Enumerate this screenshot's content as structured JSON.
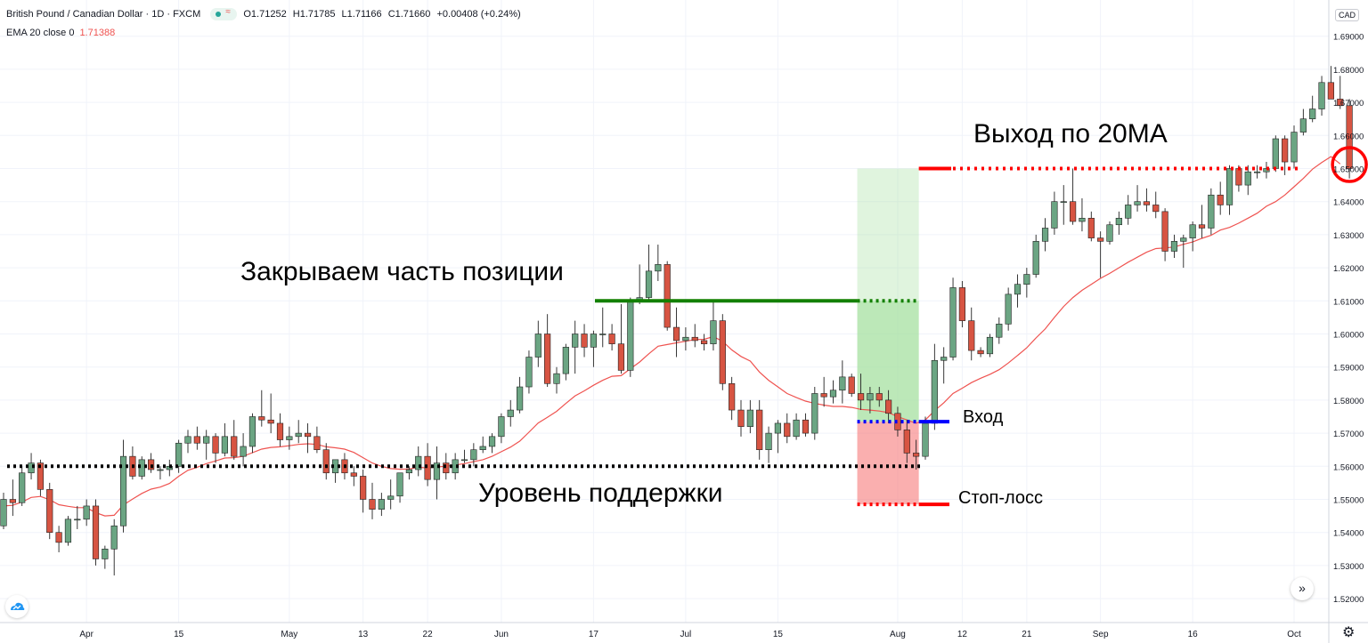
{
  "header": {
    "symbol": "British Pound / Canadian Dollar · 1D · FXCM",
    "open": "O1.71252",
    "high": "H1.71785",
    "low": "L1.71166",
    "close": "C1.71660",
    "change": "+0.00408 (+0.24%)",
    "ema_label": "EMA 20 close 0",
    "ema_value": "1.71388",
    "currency": "CAD"
  },
  "colors": {
    "up": "#6ba583",
    "down": "#d75442",
    "ema": "#ef5350",
    "support": "#000000",
    "take_profit": "#138000",
    "entry": "#0000ff",
    "stop": "#ff0000",
    "profit_zone": "#a5e0a0",
    "loss_zone": "#f77a7a"
  },
  "chart_data": {
    "type": "candlestick",
    "title": "British Pound / Canadian Dollar · 1D · FXCM",
    "ylim": [
      1.515,
      1.695
    ],
    "y_ticks": [
      "1.52000",
      "1.53000",
      "1.54000",
      "1.55000",
      "1.56000",
      "1.57000",
      "1.58000",
      "1.59000",
      "1.60000",
      "1.61000",
      "1.62000",
      "1.63000",
      "1.64000",
      "1.65000",
      "1.66000",
      "1.67000",
      "1.68000",
      "1.69000"
    ],
    "x_ticks": [
      {
        "label": "Apr",
        "bar": 9
      },
      {
        "label": "15",
        "bar": 19
      },
      {
        "label": "May",
        "bar": 31
      },
      {
        "label": "13",
        "bar": 39
      },
      {
        "label": "22",
        "bar": 46
      },
      {
        "label": "Jun",
        "bar": 54
      },
      {
        "label": "17",
        "bar": 64
      },
      {
        "label": "Jul",
        "bar": 74
      },
      {
        "label": "15",
        "bar": 84
      },
      {
        "label": "Aug",
        "bar": 97
      },
      {
        "label": "12",
        "bar": 104
      },
      {
        "label": "21",
        "bar": 111
      },
      {
        "label": "Sep",
        "bar": 119
      },
      {
        "label": "16",
        "bar": 129
      },
      {
        "label": "Oct",
        "bar": 140
      }
    ],
    "candles": [
      [
        1.542,
        1.552,
        1.541,
        1.55
      ],
      [
        1.55,
        1.556,
        1.545,
        1.549
      ],
      [
        1.549,
        1.56,
        1.548,
        1.558
      ],
      [
        1.558,
        1.564,
        1.556,
        1.561
      ],
      [
        1.561,
        1.562,
        1.551,
        1.553
      ],
      [
        1.553,
        1.555,
        1.538,
        1.54
      ],
      [
        1.54,
        1.542,
        1.534,
        1.537
      ],
      [
        1.537,
        1.545,
        1.536,
        1.544
      ],
      [
        1.544,
        1.548,
        1.541,
        1.544
      ],
      [
        1.544,
        1.55,
        1.542,
        1.548
      ],
      [
        1.548,
        1.55,
        1.53,
        1.532
      ],
      [
        1.532,
        1.536,
        1.529,
        1.535
      ],
      [
        1.535,
        1.544,
        1.527,
        1.542
      ],
      [
        1.542,
        1.568,
        1.54,
        1.563
      ],
      [
        1.563,
        1.566,
        1.556,
        1.557
      ],
      [
        1.557,
        1.563,
        1.556,
        1.562
      ],
      [
        1.562,
        1.564,
        1.558,
        1.559
      ],
      [
        1.559,
        1.56,
        1.556,
        1.559
      ],
      [
        1.559,
        1.562,
        1.557,
        1.56
      ],
      [
        1.56,
        1.568,
        1.558,
        1.567
      ],
      [
        1.567,
        1.571,
        1.564,
        1.569
      ],
      [
        1.569,
        1.572,
        1.565,
        1.567
      ],
      [
        1.567,
        1.571,
        1.562,
        1.569
      ],
      [
        1.569,
        1.57,
        1.561,
        1.564
      ],
      [
        1.564,
        1.573,
        1.563,
        1.569
      ],
      [
        1.569,
        1.574,
        1.562,
        1.563
      ],
      [
        1.563,
        1.57,
        1.56,
        1.566
      ],
      [
        1.566,
        1.576,
        1.564,
        1.575
      ],
      [
        1.575,
        1.583,
        1.572,
        1.574
      ],
      [
        1.574,
        1.582,
        1.57,
        1.573
      ],
      [
        1.573,
        1.576,
        1.566,
        1.568
      ],
      [
        1.568,
        1.572,
        1.565,
        1.569
      ],
      [
        1.569,
        1.574,
        1.567,
        1.57
      ],
      [
        1.57,
        1.573,
        1.564,
        1.569
      ],
      [
        1.569,
        1.572,
        1.564,
        1.565
      ],
      [
        1.565,
        1.567,
        1.556,
        1.558
      ],
      [
        1.558,
        1.562,
        1.555,
        1.562
      ],
      [
        1.562,
        1.564,
        1.556,
        1.558
      ],
      [
        1.558,
        1.56,
        1.554,
        1.557
      ],
      [
        1.557,
        1.559,
        1.546,
        1.55
      ],
      [
        1.55,
        1.555,
        1.544,
        1.547
      ],
      [
        1.547,
        1.552,
        1.545,
        1.55
      ],
      [
        1.55,
        1.556,
        1.547,
        1.551
      ],
      [
        1.551,
        1.558,
        1.549,
        1.558
      ],
      [
        1.558,
        1.56,
        1.556,
        1.559
      ],
      [
        1.559,
        1.566,
        1.557,
        1.563
      ],
      [
        1.563,
        1.567,
        1.554,
        1.556
      ],
      [
        1.556,
        1.566,
        1.55,
        1.561
      ],
      [
        1.561,
        1.564,
        1.556,
        1.558
      ],
      [
        1.558,
        1.564,
        1.556,
        1.562
      ],
      [
        1.562,
        1.565,
        1.561,
        1.562
      ],
      [
        1.562,
        1.567,
        1.56,
        1.565
      ],
      [
        1.565,
        1.569,
        1.564,
        1.566
      ],
      [
        1.566,
        1.57,
        1.564,
        1.569
      ],
      [
        1.569,
        1.576,
        1.567,
        1.575
      ],
      [
        1.575,
        1.58,
        1.572,
        1.577
      ],
      [
        1.577,
        1.587,
        1.576,
        1.584
      ],
      [
        1.584,
        1.595,
        1.582,
        1.593
      ],
      [
        1.593,
        1.604,
        1.59,
        1.6
      ],
      [
        1.6,
        1.606,
        1.584,
        1.585
      ],
      [
        1.585,
        1.59,
        1.582,
        1.588
      ],
      [
        1.588,
        1.597,
        1.586,
        1.596
      ],
      [
        1.596,
        1.604,
        1.588,
        1.6
      ],
      [
        1.6,
        1.603,
        1.593,
        1.596
      ],
      [
        1.596,
        1.601,
        1.59,
        1.6
      ],
      [
        1.6,
        1.608,
        1.596,
        1.6
      ],
      [
        1.6,
        1.603,
        1.595,
        1.597
      ],
      [
        1.597,
        1.609,
        1.588,
        1.589
      ],
      [
        1.589,
        1.611,
        1.587,
        1.61
      ],
      [
        1.61,
        1.621,
        1.609,
        1.611
      ],
      [
        1.611,
        1.627,
        1.61,
        1.619
      ],
      [
        1.619,
        1.627,
        1.616,
        1.621
      ],
      [
        1.621,
        1.622,
        1.601,
        1.602
      ],
      [
        1.602,
        1.608,
        1.593,
        1.598
      ],
      [
        1.598,
        1.602,
        1.595,
        1.599
      ],
      [
        1.599,
        1.603,
        1.596,
        1.598
      ],
      [
        1.598,
        1.6,
        1.595,
        1.597
      ],
      [
        1.597,
        1.61,
        1.595,
        1.604
      ],
      [
        1.604,
        1.606,
        1.583,
        1.585
      ],
      [
        1.585,
        1.587,
        1.574,
        1.577
      ],
      [
        1.577,
        1.58,
        1.569,
        1.572
      ],
      [
        1.572,
        1.58,
        1.57,
        1.577
      ],
      [
        1.577,
        1.58,
        1.562,
        1.565
      ],
      [
        1.565,
        1.572,
        1.561,
        1.57
      ],
      [
        1.57,
        1.574,
        1.564,
        1.573
      ],
      [
        1.573,
        1.576,
        1.567,
        1.569
      ],
      [
        1.569,
        1.576,
        1.568,
        1.574
      ],
      [
        1.574,
        1.576,
        1.569,
        1.57
      ],
      [
        1.57,
        1.584,
        1.568,
        1.582
      ],
      [
        1.582,
        1.587,
        1.578,
        1.581
      ],
      [
        1.581,
        1.586,
        1.579,
        1.583
      ],
      [
        1.583,
        1.592,
        1.579,
        1.587
      ],
      [
        1.587,
        1.588,
        1.581,
        1.582
      ],
      [
        1.582,
        1.588,
        1.577,
        1.58
      ],
      [
        1.58,
        1.584,
        1.576,
        1.582
      ],
      [
        1.582,
        1.584,
        1.578,
        1.58
      ],
      [
        1.58,
        1.583,
        1.573,
        1.576
      ],
      [
        1.576,
        1.578,
        1.569,
        1.571
      ],
      [
        1.571,
        1.574,
        1.561,
        1.564
      ],
      [
        1.564,
        1.568,
        1.559,
        1.563
      ],
      [
        1.563,
        1.575,
        1.562,
        1.573
      ],
      [
        1.573,
        1.597,
        1.571,
        1.592
      ],
      [
        1.592,
        1.596,
        1.585,
        1.593
      ],
      [
        1.593,
        1.617,
        1.592,
        1.614
      ],
      [
        1.614,
        1.616,
        1.602,
        1.604
      ],
      [
        1.604,
        1.608,
        1.592,
        1.595
      ],
      [
        1.595,
        1.596,
        1.593,
        1.594
      ],
      [
        1.594,
        1.6,
        1.593,
        1.599
      ],
      [
        1.599,
        1.605,
        1.597,
        1.603
      ],
      [
        1.603,
        1.614,
        1.601,
        1.612
      ],
      [
        1.612,
        1.618,
        1.608,
        1.615
      ],
      [
        1.615,
        1.62,
        1.611,
        1.618
      ],
      [
        1.618,
        1.63,
        1.617,
        1.628
      ],
      [
        1.628,
        1.635,
        1.625,
        1.632
      ],
      [
        1.632,
        1.643,
        1.63,
        1.64
      ],
      [
        1.64,
        1.645,
        1.633,
        1.64
      ],
      [
        1.64,
        1.65,
        1.633,
        1.634
      ],
      [
        1.634,
        1.641,
        1.631,
        1.635
      ],
      [
        1.635,
        1.637,
        1.628,
        1.629
      ],
      [
        1.629,
        1.631,
        1.617,
        1.628
      ],
      [
        1.628,
        1.634,
        1.627,
        1.633
      ],
      [
        1.633,
        1.637,
        1.63,
        1.635
      ],
      [
        1.635,
        1.642,
        1.633,
        1.639
      ],
      [
        1.639,
        1.645,
        1.637,
        1.64
      ],
      [
        1.64,
        1.644,
        1.637,
        1.639
      ],
      [
        1.639,
        1.643,
        1.635,
        1.637
      ],
      [
        1.637,
        1.638,
        1.622,
        1.625
      ],
      [
        1.625,
        1.63,
        1.623,
        1.628
      ],
      [
        1.628,
        1.63,
        1.62,
        1.629
      ],
      [
        1.629,
        1.634,
        1.625,
        1.633
      ],
      [
        1.633,
        1.639,
        1.629,
        1.632
      ],
      [
        1.632,
        1.644,
        1.63,
        1.642
      ],
      [
        1.642,
        1.646,
        1.636,
        1.639
      ],
      [
        1.639,
        1.651,
        1.636,
        1.65
      ],
      [
        1.65,
        1.651,
        1.643,
        1.645
      ],
      [
        1.645,
        1.651,
        1.642,
        1.649
      ],
      [
        1.649,
        1.651,
        1.647,
        1.649
      ],
      [
        1.649,
        1.652,
        1.647,
        1.65
      ],
      [
        1.65,
        1.66,
        1.649,
        1.659
      ],
      [
        1.659,
        1.66,
        1.648,
        1.652
      ],
      [
        1.652,
        1.663,
        1.65,
        1.661
      ],
      [
        1.661,
        1.668,
        1.66,
        1.665
      ],
      [
        1.665,
        1.672,
        1.664,
        1.668
      ],
      [
        1.668,
        1.678,
        1.666,
        1.676
      ],
      [
        1.676,
        1.681,
        1.671,
        1.671
      ],
      [
        1.671,
        1.678,
        1.668,
        1.669
      ],
      [
        1.669,
        1.671,
        1.647,
        1.65
      ]
    ],
    "ema20": [
      1.548,
      1.5482,
      1.5492,
      1.5506,
      1.5509,
      1.5499,
      1.5484,
      1.5479,
      1.5475,
      1.5475,
      1.546,
      1.545,
      1.5452,
      1.5483,
      1.5501,
      1.5518,
      1.5531,
      1.5537,
      1.5548,
      1.557,
      1.5588,
      1.5597,
      1.5608,
      1.5616,
      1.5625,
      1.5626,
      1.563,
      1.5641,
      1.5652,
      1.5657,
      1.5659,
      1.5662,
      1.5666,
      1.5668,
      1.5666,
      1.5659,
      1.5656,
      1.5652,
      1.5642,
      1.5626,
      1.561,
      1.56,
      1.5593,
      1.5591,
      1.5592,
      1.5597,
      1.5595,
      1.5598,
      1.56,
      1.5604,
      1.5608,
      1.5614,
      1.562,
      1.563,
      1.5644,
      1.5658,
      1.5676,
      1.5703,
      1.5731,
      1.5748,
      1.5766,
      1.579,
      1.5813,
      1.5828,
      1.5845,
      1.586,
      1.5872,
      1.5874,
      1.5895,
      1.5915,
      1.594,
      1.5963,
      1.5968,
      1.5973,
      1.5978,
      1.5983,
      1.5984,
      1.5992,
      1.5978,
      1.5952,
      1.5932,
      1.5918,
      1.5885,
      1.586,
      1.584,
      1.582,
      1.5808,
      1.5797,
      1.579,
      1.5785,
      1.5781,
      1.5781,
      1.5778,
      1.5772,
      1.577,
      1.5767,
      1.5762,
      1.575,
      1.574,
      1.573,
      1.574,
      1.5768,
      1.5792,
      1.582,
      1.5836,
      1.5853,
      1.5866,
      1.5878,
      1.5892,
      1.5912,
      1.5935,
      1.5958,
      1.5988,
      1.6015,
      1.605,
      1.6083,
      1.611,
      1.6132,
      1.615,
      1.6168,
      1.6183,
      1.62,
      1.6217,
      1.6232,
      1.6247,
      1.6258,
      1.626,
      1.6263,
      1.6271,
      1.6278,
      1.6289,
      1.6298,
      1.6314,
      1.6322,
      1.6335,
      1.635,
      1.6365,
      1.6386,
      1.64,
      1.642,
      1.6445,
      1.647,
      1.6498,
      1.6518,
      1.6536,
      1.6514
    ]
  },
  "annotations": {
    "support_label": "Уровень поддержки",
    "partial_close_label": "Закрываем часть позиции",
    "exit_label": "Выход по 20MA",
    "entry_label": "Вход",
    "stop_label": "Стоп-лосс",
    "support_level": 1.56,
    "take_profit_level": 1.61,
    "target_level": 1.65,
    "entry_level": 1.5735,
    "stop_level": 1.5485
  }
}
